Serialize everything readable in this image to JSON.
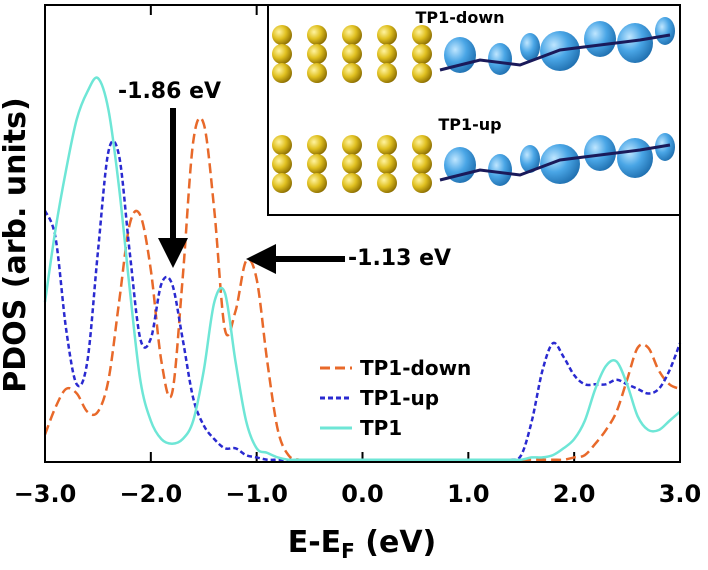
{
  "chart_data": {
    "type": "line",
    "ylabel": "PDOS (arb. units)",
    "xlabel": [
      "E-E",
      "F",
      " (eV)"
    ],
    "xlim": [
      -3,
      3
    ],
    "ylim": [
      0,
      10
    ],
    "xticks": [
      {
        "value": -3,
        "label": "−3.0"
      },
      {
        "value": -2,
        "label": "−2.0"
      },
      {
        "value": -1,
        "label": "−1.0"
      },
      {
        "value": 0,
        "label": "0.0"
      },
      {
        "value": 1,
        "label": "1.0"
      },
      {
        "value": 2,
        "label": "2.0"
      },
      {
        "value": 3,
        "label": "3.0"
      }
    ],
    "legend": "center right",
    "x": [
      -3.0,
      -2.9,
      -2.8,
      -2.7,
      -2.6,
      -2.5,
      -2.4,
      -2.3,
      -2.2,
      -2.1,
      -2.0,
      -1.9,
      -1.8,
      -1.7,
      -1.6,
      -1.5,
      -1.4,
      -1.3,
      -1.2,
      -1.1,
      -1.0,
      -0.9,
      -0.8,
      -0.7,
      -0.6,
      -0.5,
      -0.4,
      -0.3,
      -0.2,
      -0.1,
      0.0,
      0.1,
      0.2,
      0.3,
      0.4,
      0.5,
      0.6,
      0.7,
      0.8,
      0.9,
      1.0,
      1.1,
      1.2,
      1.3,
      1.4,
      1.5,
      1.6,
      1.7,
      1.8,
      1.9,
      2.0,
      2.1,
      2.2,
      2.3,
      2.4,
      2.5,
      2.6,
      2.7,
      2.8,
      2.9,
      3.0
    ],
    "series": [
      {
        "name": "TP1-down",
        "color": "#e8692a",
        "dash": "10 5",
        "values": [
          0.6,
          1.2,
          1.6,
          1.5,
          1.1,
          1.1,
          1.8,
          3.5,
          5.2,
          5.4,
          4.2,
          2.2,
          1.5,
          4.0,
          7.0,
          7.4,
          5.5,
          2.9,
          3.3,
          4.4,
          4.0,
          2.2,
          0.7,
          0.15,
          0.05,
          0.05,
          0.05,
          0.05,
          0.05,
          0.05,
          0.05,
          0.05,
          0.05,
          0.05,
          0.05,
          0.05,
          0.05,
          0.05,
          0.05,
          0.05,
          0.05,
          0.05,
          0.05,
          0.05,
          0.05,
          0.05,
          0.05,
          0.05,
          0.05,
          0.05,
          0.1,
          0.15,
          0.4,
          0.7,
          1.1,
          1.8,
          2.5,
          2.5,
          2.0,
          1.7,
          1.6
        ]
      },
      {
        "name": "TP1-up",
        "color": "#2a2ad0",
        "dash": "5 3",
        "values": [
          5.5,
          4.9,
          2.9,
          1.7,
          2.2,
          4.6,
          6.8,
          6.7,
          4.6,
          2.7,
          2.7,
          3.9,
          3.9,
          2.7,
          1.4,
          0.8,
          0.5,
          0.3,
          0.3,
          0.15,
          0.1,
          0.05,
          0.05,
          0.05,
          0.05,
          0.05,
          0.05,
          0.05,
          0.05,
          0.05,
          0.05,
          0.05,
          0.05,
          0.05,
          0.05,
          0.05,
          0.05,
          0.05,
          0.05,
          0.05,
          0.05,
          0.05,
          0.05,
          0.05,
          0.05,
          0.15,
          0.9,
          2.0,
          2.6,
          2.3,
          1.9,
          1.7,
          1.7,
          1.7,
          1.8,
          1.7,
          1.6,
          1.5,
          1.6,
          2.0,
          2.6
        ]
      },
      {
        "name": "TP1",
        "color": "#6ee6d6",
        "dash": "",
        "values": [
          3.5,
          5.1,
          6.4,
          7.5,
          8.1,
          8.4,
          7.7,
          6.0,
          3.8,
          1.8,
          0.9,
          0.5,
          0.4,
          0.5,
          0.9,
          2.0,
          3.5,
          3.7,
          2.2,
          0.9,
          0.3,
          0.2,
          0.1,
          0.05,
          0.05,
          0.05,
          0.05,
          0.05,
          0.05,
          0.05,
          0.05,
          0.05,
          0.05,
          0.05,
          0.05,
          0.05,
          0.05,
          0.05,
          0.05,
          0.05,
          0.05,
          0.05,
          0.05,
          0.05,
          0.05,
          0.05,
          0.1,
          0.1,
          0.15,
          0.3,
          0.5,
          0.9,
          1.6,
          2.1,
          2.2,
          1.7,
          1.0,
          0.7,
          0.7,
          0.9,
          1.1
        ]
      }
    ],
    "annotations": [
      "-1.86 eV",
      "-1.13 eV"
    ],
    "inset_labels": [
      "TP1-down",
      "TP1-up"
    ]
  }
}
